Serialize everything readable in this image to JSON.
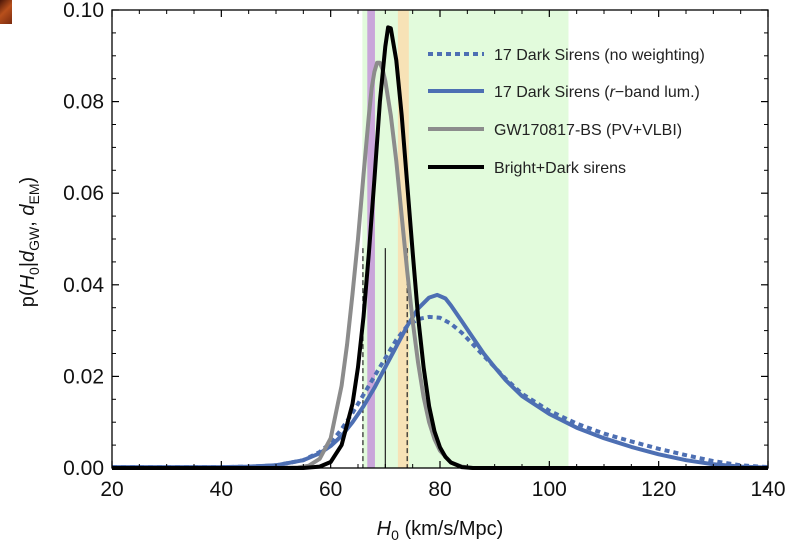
{
  "chart_data": {
    "type": "line",
    "xlabel": "H_0 (km/s/Mpc)",
    "ylabel": "p(H_0|d_GW, d_EM)",
    "xlabel_parts": {
      "symbol": "H",
      "sub": "0",
      "unit": " (km/s/Mpc)"
    },
    "ylabel_parts": {
      "pre": "p(",
      "symbol1": "H",
      "sub1": "0",
      "bar": "|",
      "symbol2": "d",
      "sub2": "GW",
      "comma": ", ",
      "symbol3": "d",
      "sub3": "EM",
      "post": ")"
    },
    "xlim": [
      20,
      140
    ],
    "ylim": [
      0,
      0.1
    ],
    "xticks": [
      "20",
      "40",
      "60",
      "80",
      "100",
      "120",
      "140"
    ],
    "yticks": [
      "0.00",
      "0.02",
      "0.04",
      "0.06",
      "0.08",
      "0.10"
    ],
    "legend_position": "top-right",
    "grid": false,
    "bands": [
      {
        "x0": 65.8,
        "x1": 103.5,
        "color": "#e2fbdc"
      },
      {
        "x0": 72.3,
        "x1": 74.3,
        "color": "#f7e2b6"
      },
      {
        "x0": 66.7,
        "x1": 68.1,
        "color": "#c9a6da"
      }
    ],
    "vlines": [
      {
        "x": 65.9,
        "style": "dashed"
      },
      {
        "x": 70.0,
        "style": "solid"
      },
      {
        "x": 74.0,
        "style": "dashed"
      }
    ],
    "series": [
      {
        "name": "17 Dark Sirens (no weighting)",
        "color": "#4d6fb3",
        "dash": "dotted",
        "points": [
          [
            20,
            0.0002
          ],
          [
            30,
            0.0002
          ],
          [
            40,
            0.0002
          ],
          [
            45,
            0.0003
          ],
          [
            50,
            0.0006
          ],
          [
            55,
            0.0017
          ],
          [
            58,
            0.0035
          ],
          [
            60,
            0.0055
          ],
          [
            62,
            0.0085
          ],
          [
            64,
            0.012
          ],
          [
            66,
            0.016
          ],
          [
            68,
            0.02
          ],
          [
            70,
            0.024
          ],
          [
            72,
            0.028
          ],
          [
            74,
            0.031
          ],
          [
            76,
            0.0325
          ],
          [
            78,
            0.033
          ],
          [
            80,
            0.0328
          ],
          [
            82,
            0.0315
          ],
          [
            84,
            0.0295
          ],
          [
            86,
            0.027
          ],
          [
            88,
            0.0245
          ],
          [
            90,
            0.022
          ],
          [
            92,
            0.0195
          ],
          [
            95,
            0.0162
          ],
          [
            100,
            0.0125
          ],
          [
            105,
            0.0097
          ],
          [
            110,
            0.0075
          ],
          [
            115,
            0.0058
          ],
          [
            120,
            0.0042
          ],
          [
            125,
            0.0028
          ],
          [
            130,
            0.0015
          ],
          [
            135,
            0.0006
          ],
          [
            140,
            0.0002
          ]
        ]
      },
      {
        "name": "17 Dark Sirens (r−band lum.)",
        "name_parts": {
          "pre": "17 Dark Sirens (",
          "italic": "r",
          "post": "−band lum.)"
        },
        "color": "#4d6fb3",
        "dash": "solid",
        "points": [
          [
            20,
            0.0002
          ],
          [
            30,
            0.0002
          ],
          [
            40,
            0.0002
          ],
          [
            45,
            0.0003
          ],
          [
            50,
            0.0006
          ],
          [
            55,
            0.0017
          ],
          [
            58,
            0.0032
          ],
          [
            60,
            0.0048
          ],
          [
            62,
            0.007
          ],
          [
            64,
            0.01
          ],
          [
            66,
            0.0135
          ],
          [
            68,
            0.0175
          ],
          [
            70,
            0.022
          ],
          [
            72,
            0.0265
          ],
          [
            74,
            0.031
          ],
          [
            76,
            0.0348
          ],
          [
            78,
            0.0372
          ],
          [
            79.5,
            0.0378
          ],
          [
            81,
            0.037
          ],
          [
            82,
            0.0355
          ],
          [
            84,
            0.032
          ],
          [
            86,
            0.0285
          ],
          [
            88,
            0.025
          ],
          [
            90,
            0.022
          ],
          [
            92,
            0.0192
          ],
          [
            95,
            0.0157
          ],
          [
            100,
            0.0118
          ],
          [
            105,
            0.0088
          ],
          [
            110,
            0.0065
          ],
          [
            115,
            0.0046
          ],
          [
            120,
            0.003
          ],
          [
            125,
            0.0017
          ],
          [
            130,
            0.0008
          ],
          [
            135,
            0.0003
          ],
          [
            140,
            0.0001
          ]
        ]
      },
      {
        "name": "GW170817-BS (PV+VLBI)",
        "color": "#8c8c8c",
        "dash": "solid",
        "points": [
          [
            20,
            0
          ],
          [
            50,
            0
          ],
          [
            54,
            0.0001
          ],
          [
            56,
            0.0005
          ],
          [
            58,
            0.002
          ],
          [
            60,
            0.0065
          ],
          [
            62,
            0.018
          ],
          [
            63,
            0.027
          ],
          [
            64,
            0.038
          ],
          [
            65,
            0.05
          ],
          [
            66,
            0.064
          ],
          [
            67,
            0.077
          ],
          [
            67.5,
            0.083
          ],
          [
            68,
            0.0865
          ],
          [
            68.5,
            0.0885
          ],
          [
            69,
            0.0885
          ],
          [
            69.5,
            0.087
          ],
          [
            70,
            0.0845
          ],
          [
            71,
            0.077
          ],
          [
            72,
            0.067
          ],
          [
            73,
            0.055
          ],
          [
            74,
            0.043
          ],
          [
            75,
            0.032
          ],
          [
            76,
            0.023
          ],
          [
            77,
            0.0155
          ],
          [
            78,
            0.01
          ],
          [
            79,
            0.0063
          ],
          [
            80,
            0.0038
          ],
          [
            82,
            0.0012
          ],
          [
            84,
            0.0003
          ],
          [
            86,
            0
          ],
          [
            140,
            0
          ]
        ]
      },
      {
        "name": "Bright+Dark sirens",
        "color": "#000000",
        "dash": "solid",
        "points": [
          [
            20,
            0
          ],
          [
            55,
            0
          ],
          [
            58,
            0.0003
          ],
          [
            60,
            0.0013
          ],
          [
            62,
            0.005
          ],
          [
            64,
            0.014
          ],
          [
            65,
            0.022
          ],
          [
            66,
            0.033
          ],
          [
            67,
            0.047
          ],
          [
            68,
            0.063
          ],
          [
            69,
            0.08
          ],
          [
            70,
            0.092
          ],
          [
            70.5,
            0.0962
          ],
          [
            71,
            0.096
          ],
          [
            72,
            0.089
          ],
          [
            73,
            0.077
          ],
          [
            74,
            0.062
          ],
          [
            75,
            0.047
          ],
          [
            76,
            0.033
          ],
          [
            77,
            0.022
          ],
          [
            78,
            0.0135
          ],
          [
            79,
            0.008
          ],
          [
            80,
            0.0045
          ],
          [
            81,
            0.0024
          ],
          [
            82,
            0.0012
          ],
          [
            84,
            0.0002
          ],
          [
            86,
            0
          ],
          [
            140,
            0
          ]
        ]
      }
    ]
  }
}
